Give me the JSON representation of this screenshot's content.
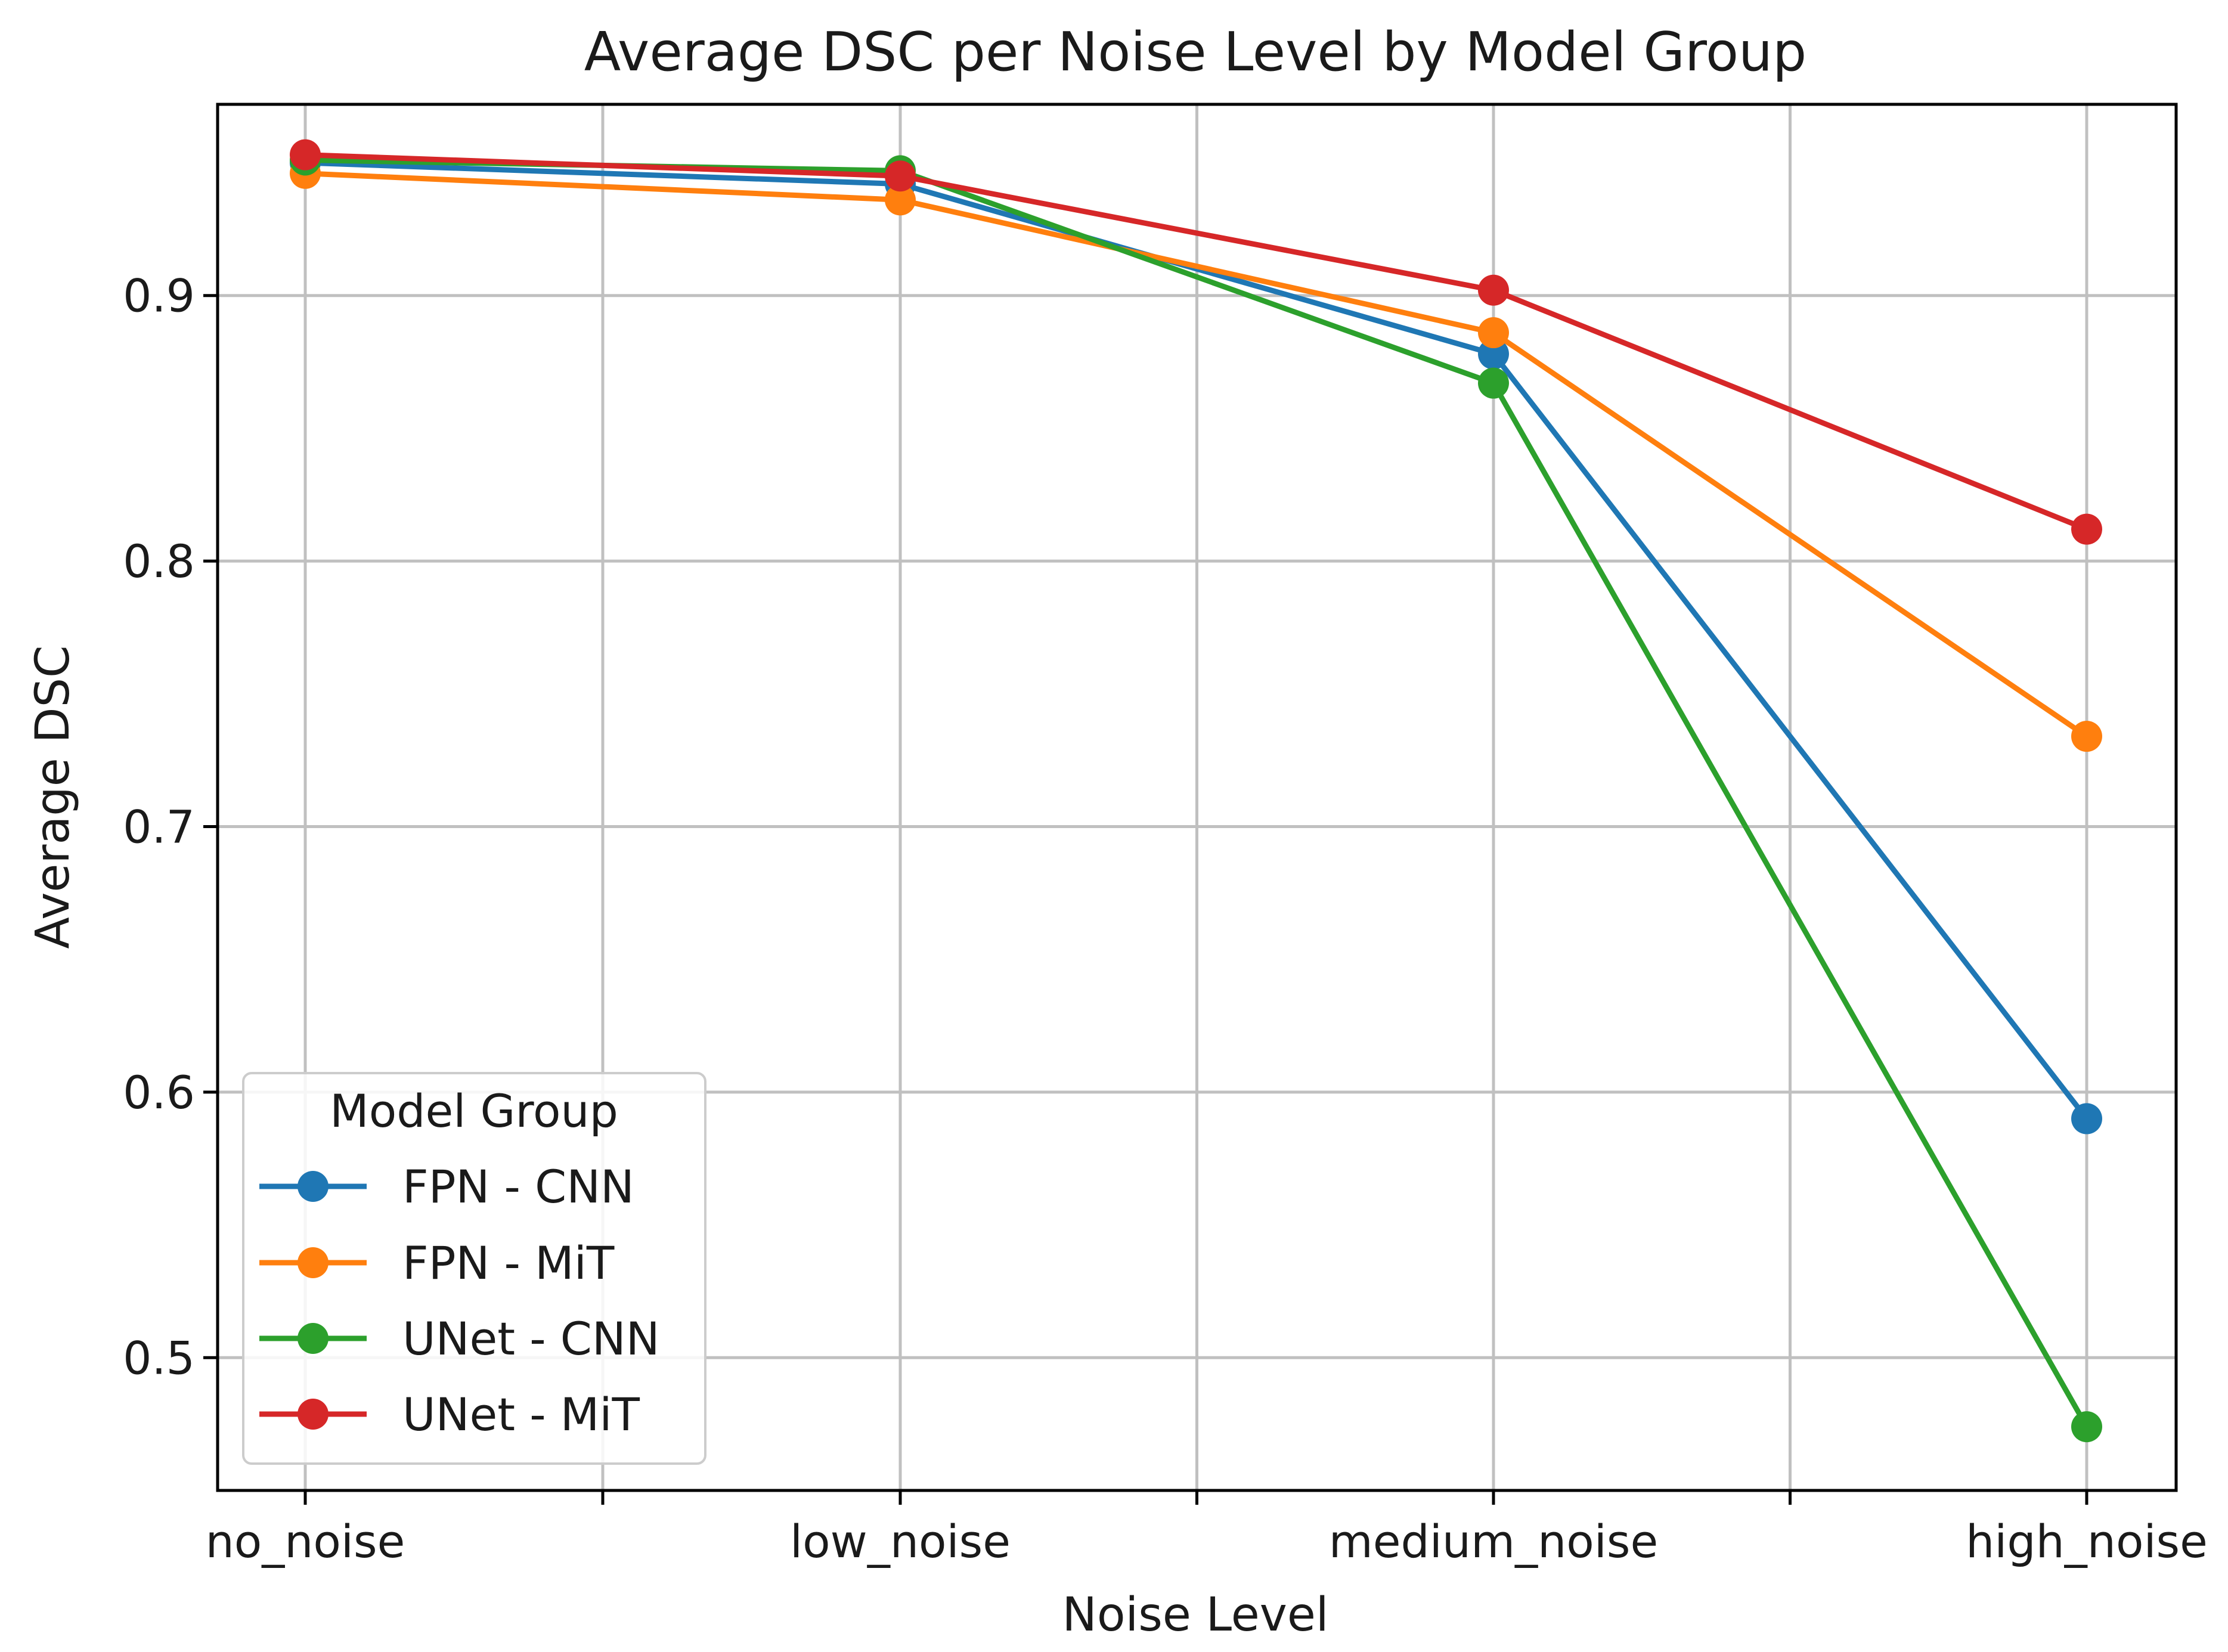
{
  "chart_data": {
    "type": "line",
    "title": "Average DSC per Noise Level by Model Group",
    "xlabel": "Noise Level",
    "ylabel": "Average DSC",
    "categories": [
      "no_noise",
      "low_noise",
      "medium_noise",
      "high_noise"
    ],
    "ylim": [
      0.45,
      0.972
    ],
    "yticks": [
      0.5,
      0.6,
      0.7,
      0.8,
      0.9
    ],
    "ytick_labels": [
      "0.5",
      "0.6",
      "0.7",
      "0.8",
      "0.9"
    ],
    "grid": true,
    "legend": {
      "title": "Model Group",
      "position": "lower-left"
    },
    "series": [
      {
        "name": "FPN - CNN",
        "color": "#1f77b4",
        "values": [
          0.95,
          0.942,
          0.878,
          0.59
        ]
      },
      {
        "name": "FPN - MiT",
        "color": "#ff7f0e",
        "values": [
          0.946,
          0.936,
          0.886,
          0.734
        ]
      },
      {
        "name": "UNet - CNN",
        "color": "#2ca02c",
        "values": [
          0.951,
          0.947,
          0.867,
          0.474
        ]
      },
      {
        "name": "UNet - MiT",
        "color": "#d62728",
        "values": [
          0.953,
          0.945,
          0.902,
          0.812
        ]
      }
    ]
  }
}
